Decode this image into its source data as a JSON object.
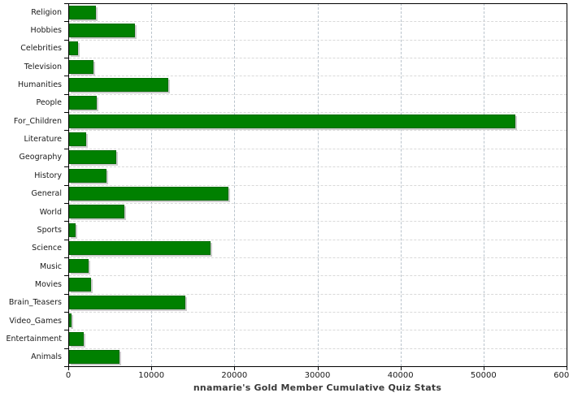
{
  "title": "nnamarie's Gold Member Cumulative Quiz Stats",
  "chart_data": {
    "type": "bar",
    "orientation": "horizontal",
    "title": "nnamarie's Gold Member Cumulative Quiz Stats",
    "xlabel": "",
    "ylabel": "",
    "xlim": [
      0,
      60000
    ],
    "x_ticks": [
      0,
      10000,
      20000,
      30000,
      40000,
      50000,
      60000
    ],
    "grid": true,
    "legend": "none",
    "categories": [
      "Religion",
      "Hobbies",
      "Celebrities",
      "Television",
      "Humanities",
      "People",
      "For_Children",
      "Literature",
      "Geography",
      "History",
      "General",
      "World",
      "Sports",
      "Science",
      "Music",
      "Movies",
      "Brain_Teasers",
      "Video_Games",
      "Entertainment",
      "Animals"
    ],
    "values": [
      3150,
      7850,
      1000,
      2850,
      11800,
      3250,
      53600,
      1950,
      5600,
      4400,
      19100,
      6600,
      700,
      16950,
      2250,
      2500,
      13900,
      200,
      1700,
      6000
    ],
    "colors": {
      "bar_fill": "#008000",
      "bar_border": "#006b00",
      "bar_shadow": "#cccccc",
      "vgrid": "#b9c3cc",
      "hgrid": "#d9d9d9",
      "axis": "#000000",
      "label_text": "#1a1a1a",
      "title_text": "#3a3a3a",
      "background": "#ffffff"
    }
  }
}
